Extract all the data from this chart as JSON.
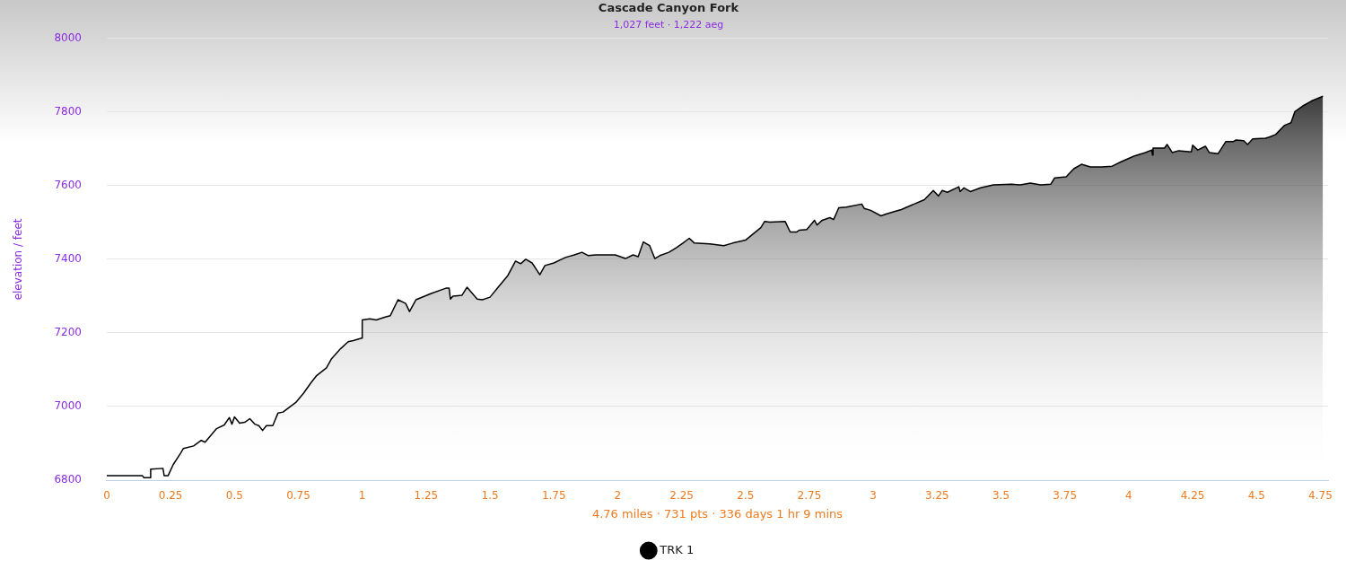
{
  "chart_data": {
    "type": "area",
    "title": "Cascade Canyon Fork",
    "subtitle": "1,027 feet · 1,222 aeg",
    "xlabel": "4.76 miles · 731 pts · 336 days 1 hr 9 mins",
    "ylabel": "elevation / feet",
    "x": [
      0,
      0.14,
      0.145,
      0.17,
      0.172,
      0.22,
      0.225,
      0.24,
      0.26,
      0.29,
      0.3,
      0.34,
      0.37,
      0.385,
      0.43,
      0.46,
      0.48,
      0.49,
      0.5,
      0.52,
      0.54,
      0.56,
      0.58,
      0.595,
      0.61,
      0.625,
      0.65,
      0.67,
      0.69,
      0.74,
      0.77,
      0.8,
      0.82,
      0.86,
      0.88,
      0.915,
      0.945,
      0.965,
      0.998,
      1.0,
      1.03,
      1.055,
      1.09,
      1.11,
      1.14,
      1.17,
      1.185,
      1.21,
      1.27,
      1.33,
      1.34,
      1.345,
      1.355,
      1.39,
      1.41,
      1.45,
      1.47,
      1.5,
      1.54,
      1.57,
      1.6,
      1.62,
      1.64,
      1.665,
      1.695,
      1.715,
      1.75,
      1.795,
      1.83,
      1.86,
      1.885,
      1.915,
      1.99,
      2.03,
      2.06,
      2.08,
      2.1,
      2.125,
      2.145,
      2.165,
      2.2,
      2.23,
      2.255,
      2.28,
      2.3,
      2.36,
      2.415,
      2.45,
      2.5,
      2.53,
      2.56,
      2.575,
      2.595,
      2.655,
      2.675,
      2.7,
      2.71,
      2.74,
      2.77,
      2.78,
      2.8,
      2.83,
      2.845,
      2.865,
      2.895,
      2.955,
      2.965,
      2.99,
      3.03,
      3.05,
      3.085,
      3.11,
      3.16,
      3.2,
      3.235,
      3.255,
      3.27,
      3.29,
      3.335,
      3.34,
      3.355,
      3.38,
      3.42,
      3.47,
      3.54,
      3.575,
      3.615,
      3.655,
      3.695,
      3.71,
      3.755,
      3.785,
      3.815,
      3.85,
      3.895,
      3.935,
      3.97,
      4.02,
      4.065,
      4.09,
      4.093,
      4.095,
      4.14,
      4.15,
      4.17,
      4.195,
      4.245,
      4.25,
      4.27,
      4.3,
      4.315,
      4.35,
      4.38,
      4.41,
      4.42,
      4.45,
      4.465,
      4.485,
      4.535,
      4.55,
      4.575,
      4.61,
      4.635,
      4.65,
      4.68,
      4.715,
      4.76
    ],
    "series": [
      {
        "name": "TRK 1",
        "color": "#000000",
        "values": [
          6812,
          6812,
          6807,
          6807,
          6830,
          6832,
          6812,
          6812,
          6842,
          6874,
          6886,
          6893,
          6908,
          6903,
          6940,
          6950,
          6970,
          6952,
          6972,
          6955,
          6957,
          6967,
          6952,
          6948,
          6935,
          6948,
          6948,
          6982,
          6985,
          7011,
          7036,
          7065,
          7083,
          7105,
          7130,
          7157,
          7176,
          7179,
          7186,
          7235,
          7238,
          7235,
          7243,
          7247,
          7290,
          7280,
          7258,
          7290,
          7307,
          7322,
          7322,
          7292,
          7300,
          7302,
          7324,
          7292,
          7290,
          7297,
          7331,
          7356,
          7395,
          7388,
          7400,
          7390,
          7358,
          7383,
          7390,
          7405,
          7412,
          7419,
          7410,
          7412,
          7412,
          7402,
          7412,
          7407,
          7447,
          7437,
          7402,
          7410,
          7419,
          7432,
          7444,
          7457,
          7444,
          7442,
          7437,
          7444,
          7452,
          7469,
          7486,
          7503,
          7501,
          7503,
          7474,
          7474,
          7479,
          7481,
          7506,
          7493,
          7506,
          7513,
          7508,
          7540,
          7542,
          7550,
          7538,
          7533,
          7518,
          7523,
          7530,
          7535,
          7550,
          7562,
          7587,
          7572,
          7587,
          7582,
          7597,
          7584,
          7594,
          7584,
          7594,
          7602,
          7604,
          7602,
          7607,
          7602,
          7604,
          7621,
          7624,
          7646,
          7658,
          7651,
          7651,
          7653,
          7665,
          7680,
          7690,
          7697,
          7683,
          7702,
          7702,
          7712,
          7690,
          7695,
          7692,
          7710,
          7697,
          7707,
          7690,
          7687,
          7720,
          7720,
          7724,
          7722,
          7712,
          7727,
          7729,
          7732,
          7739,
          7764,
          7771,
          7801,
          7816,
          7830,
          7843
        ]
      }
    ],
    "xlim": [
      0,
      4.78
    ],
    "xticks": [
      0,
      0.25,
      0.5,
      0.75,
      1,
      1.25,
      1.5,
      1.75,
      2,
      2.25,
      2.5,
      2.75,
      3,
      3.25,
      3.5,
      3.75,
      4,
      4.25,
      4.5,
      4.75
    ],
    "ylim": [
      6800,
      8000
    ],
    "yticks": [
      6800,
      7000,
      7200,
      7400,
      7600,
      7800,
      8000
    ],
    "grid": "y",
    "legend": "bottom",
    "marker": "none",
    "line_style": "solid"
  }
}
